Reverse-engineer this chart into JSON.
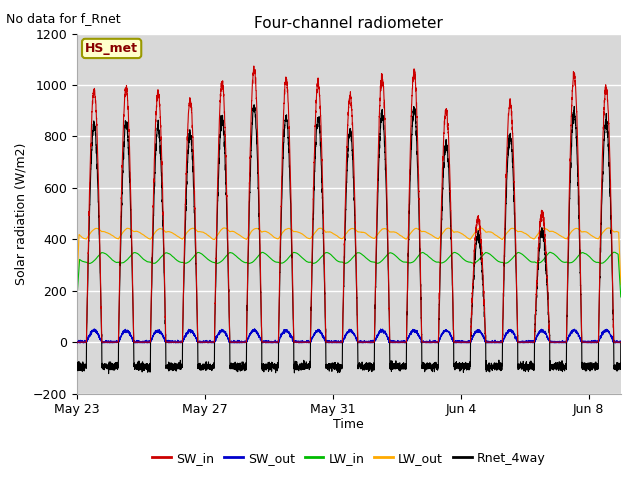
{
  "title": "Four-channel radiometer",
  "top_left_text": "No data for f_Rnet",
  "ylabel": "Solar radiation (W/m2)",
  "xlabel": "Time",
  "ylim": [
    -200,
    1200
  ],
  "yticks": [
    -200,
    0,
    200,
    400,
    600,
    800,
    1000,
    1200
  ],
  "x_tick_labels": [
    "May 23",
    "May 27",
    "May 31",
    "Jun 4",
    "Jun 8"
  ],
  "x_tick_pos": [
    0,
    4,
    8,
    12,
    16
  ],
  "legend_labels": [
    "SW_in",
    "SW_out",
    "LW_in",
    "LW_out",
    "Rnet_4way"
  ],
  "legend_colors": [
    "#cc0000",
    "#0000cc",
    "#00bb00",
    "#ffaa00",
    "#000000"
  ],
  "line_colors": {
    "SW_in": "#cc0000",
    "SW_out": "#0000cc",
    "LW_in": "#00bb00",
    "LW_out": "#ffaa00",
    "Rnet_4way": "#000000"
  },
  "annotation_box": {
    "text": "HS_met",
    "fc": "#ffffcc",
    "ec": "#999900",
    "text_color": "#880000"
  },
  "background_color": "#ffffff",
  "plot_bg_color": "#d8d8d8",
  "grid_color": "#ffffff",
  "n_days": 17
}
